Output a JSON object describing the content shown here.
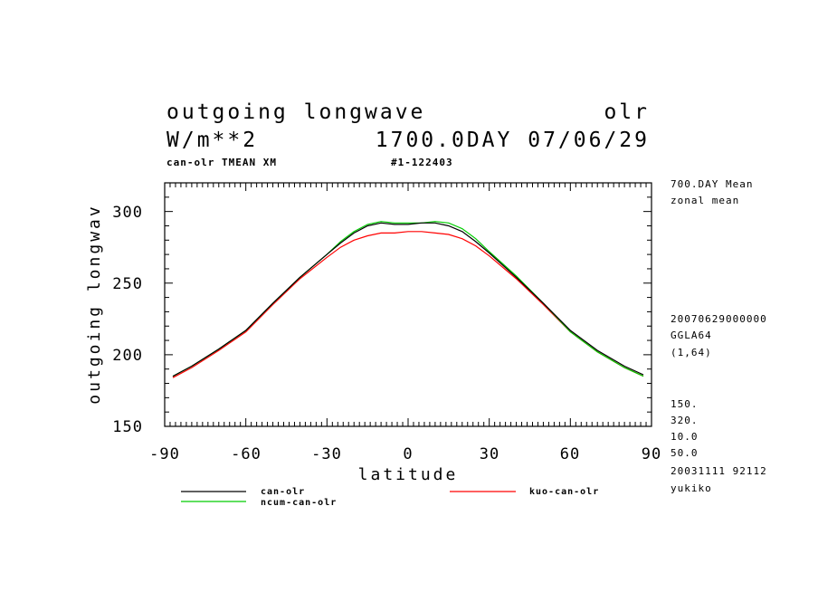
{
  "header": {
    "title_left": "outgoing longwave",
    "title_right": "olr",
    "units": "W/m**2",
    "time": "1700.0DAY 07/06/29",
    "subtitle_left": "can-olr TMEAN XM",
    "subtitle_right": "#1-122403"
  },
  "side_info": {
    "lines_top": [
      "700.DAY Mean",
      "zonal mean"
    ],
    "lines_mid": [
      "20070629000000",
      "GGLA64",
      "(1,64)"
    ],
    "lines_bottom": [
      "150.",
      "320.",
      "10.0",
      "50.0",
      "20031111  92112",
      "yukiko"
    ]
  },
  "chart_data": {
    "type": "line",
    "title": "outgoing longwave",
    "xlabel": "latitude",
    "ylabel": "outgoing longwav",
    "xlim": [
      -90,
      90
    ],
    "ylim": [
      150,
      320
    ],
    "xticks": [
      -90,
      -60,
      -30,
      0,
      30,
      60,
      90
    ],
    "xtick_labels": [
      "-90",
      "-60",
      "-30",
      "0",
      "30",
      "60",
      "90"
    ],
    "yticks": [
      150,
      200,
      250,
      300
    ],
    "ytick_labels": [
      "150",
      "200",
      "250",
      "300"
    ],
    "x": [
      -87,
      -80,
      -70,
      -60,
      -50,
      -40,
      -30,
      -25,
      -20,
      -15,
      -10,
      -5,
      0,
      5,
      10,
      15,
      20,
      25,
      30,
      40,
      50,
      60,
      70,
      80,
      87
    ],
    "series": [
      {
        "name": "can-olr",
        "color": "#000000",
        "values": [
          185,
          192,
          204,
          217,
          236,
          254,
          270,
          278,
          285,
          290,
          292,
          291,
          291,
          292,
          292,
          290,
          286,
          279,
          271,
          254,
          236,
          217,
          203,
          192,
          186
        ]
      },
      {
        "name": "kuo-can-olr",
        "color": "#ff0000",
        "values": [
          184,
          191,
          203,
          216,
          235,
          253,
          268,
          275,
          280,
          283,
          285,
          285,
          286,
          286,
          285,
          284,
          281,
          276,
          269,
          253,
          235,
          216,
          202,
          191,
          185
        ]
      },
      {
        "name": "ncum-can-olr",
        "color": "#00cc00",
        "values": [
          185,
          192,
          204,
          217,
          236,
          254,
          270,
          279,
          286,
          291,
          293,
          292,
          292,
          292,
          293,
          292,
          288,
          281,
          272,
          255,
          236,
          216,
          202,
          191,
          185
        ]
      }
    ]
  }
}
